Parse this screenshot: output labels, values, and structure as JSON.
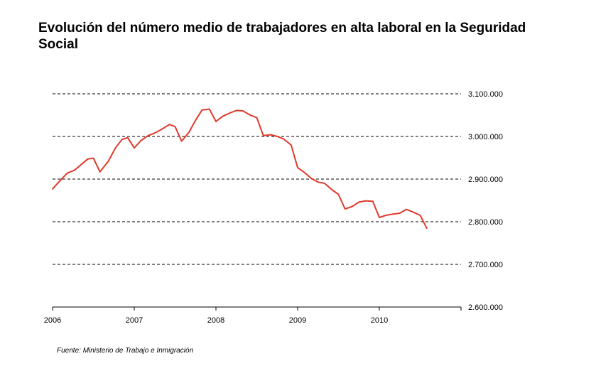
{
  "title": "Evolución del número medio de trabajadores en alta laboral en la Seguridad Social",
  "source": "Fuente: Ministerio de Trabajo e Inmigración",
  "colors": {
    "line": "#e0392b",
    "grid": "#000000",
    "axis": "#000000"
  },
  "chart_data": {
    "type": "line",
    "title": "Evolución del número medio de trabajadores en alta laboral en la Seguridad Social",
    "xlabel": "",
    "ylabel": "",
    "xlim": [
      2006,
      2011
    ],
    "ylim": [
      2600000,
      3100000
    ],
    "y_axis_position": "right",
    "grid": "horizontal dashed",
    "x_ticks": [
      2006,
      2007,
      2008,
      2009,
      2010
    ],
    "x_tick_labels": [
      "2006",
      "2007",
      "2008",
      "2009",
      "2010"
    ],
    "y_ticks": [
      2600000,
      2700000,
      2800000,
      2900000,
      3000000,
      3100000
    ],
    "y_tick_labels": [
      "2.600.000",
      "2.700.000",
      "2.800.000",
      "2.900.000",
      "3.000.000",
      "3.100.000"
    ],
    "series": [
      {
        "x": [
          2006.0,
          2006.1,
          2006.18,
          2006.27,
          2006.35,
          2006.43,
          2006.5,
          2006.58,
          2006.68,
          2006.77,
          2006.85,
          2006.92,
          2007.0,
          2007.08,
          2007.17,
          2007.25,
          2007.33,
          2007.43,
          2007.5,
          2007.58,
          2007.67,
          2007.75,
          2007.83,
          2007.92,
          2008.0,
          2008.08,
          2008.17,
          2008.25,
          2008.33,
          2008.42,
          2008.5,
          2008.58,
          2008.67,
          2008.75,
          2008.83,
          2008.92,
          2009.0,
          2009.08,
          2009.17,
          2009.25,
          2009.33,
          2009.42,
          2009.5,
          2009.58,
          2009.67,
          2009.75,
          2009.83,
          2009.92,
          2010.0,
          2010.08,
          2010.17,
          2010.25,
          2010.33,
          2010.42,
          2010.5,
          2010.58
        ],
        "values": [
          2877000,
          2898000,
          2914000,
          2921000,
          2934000,
          2947000,
          2949000,
          2917000,
          2941000,
          2973000,
          2993000,
          2997000,
          2973000,
          2990000,
          3002000,
          3008000,
          3016000,
          3028000,
          3023000,
          2989000,
          3010000,
          3038000,
          3062000,
          3064000,
          3035000,
          3047000,
          3055000,
          3061000,
          3060000,
          3050000,
          3044000,
          3002000,
          3004000,
          3000000,
          2994000,
          2980000,
          2927000,
          2916000,
          2901000,
          2893000,
          2890000,
          2875000,
          2864000,
          2830000,
          2836000,
          2846000,
          2849000,
          2848000,
          2810000,
          2815000,
          2818000,
          2820000,
          2829000,
          2822000,
          2815000,
          2785000
        ]
      }
    ]
  }
}
